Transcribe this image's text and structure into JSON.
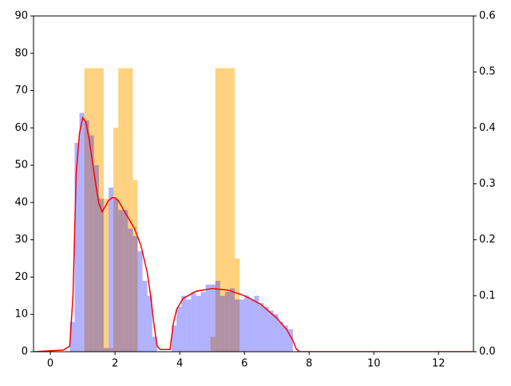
{
  "chart_data": {
    "type": "histogram",
    "bins": [
      0.6,
      0.75,
      0.9,
      1.05,
      1.2,
      1.35,
      1.5,
      1.65,
      1.8,
      1.95,
      2.1,
      2.25,
      2.4,
      2.55,
      2.7,
      2.85,
      3.0,
      3.15,
      3.3,
      3.45,
      3.6,
      3.75,
      3.9,
      4.05,
      4.2,
      4.35,
      4.5,
      4.65,
      4.8,
      4.95,
      5.1,
      5.25,
      5.4,
      5.55,
      5.7,
      5.85,
      6.0,
      6.15,
      6.3,
      6.45,
      6.6,
      6.75,
      6.9,
      7.05,
      7.2,
      7.35,
      7.5
    ],
    "series": [
      {
        "color": "#ffa500",
        "values": [
          0,
          0,
          0,
          76,
          76,
          76,
          76,
          41,
          1,
          60,
          76,
          76,
          76,
          46,
          0,
          0,
          0,
          0,
          0,
          0,
          0,
          0,
          0,
          0,
          0,
          0,
          0,
          0,
          0,
          4,
          76,
          76,
          76,
          76,
          25,
          0,
          0,
          0,
          0,
          0,
          0,
          0,
          0,
          0,
          0,
          0
        ]
      },
      {
        "color": "#0000ff",
        "values": [
          8,
          56,
          64,
          62,
          58,
          50,
          41,
          1,
          44,
          41,
          38,
          38,
          33,
          31,
          27,
          19,
          15,
          4,
          0,
          0,
          0,
          7,
          12,
          15,
          14,
          16,
          15,
          16,
          18,
          18,
          19,
          15,
          16,
          17,
          14,
          14,
          15,
          14,
          15,
          13,
          12,
          11,
          10,
          8,
          7,
          6
        ]
      }
    ],
    "line": {
      "color": "#ff0000",
      "axis": "y2",
      "x": [
        -0.5,
        0.4,
        0.6,
        0.7,
        0.8,
        0.9,
        1.0,
        1.1,
        1.2,
        1.3,
        1.4,
        1.5,
        1.6,
        1.7,
        1.8,
        1.9,
        2.0,
        2.1,
        2.2,
        2.4,
        2.6,
        2.8,
        3.0,
        3.1,
        3.2,
        3.3,
        3.4,
        3.7,
        3.8,
        3.9,
        4.1,
        4.5,
        5.0,
        5.5,
        6.0,
        6.5,
        7.0,
        7.3,
        7.5,
        7.6,
        7.7,
        13.1
      ],
      "values": [
        0,
        0.003,
        0.01,
        0.1,
        0.32,
        0.39,
        0.418,
        0.41,
        0.38,
        0.34,
        0.3,
        0.265,
        0.25,
        0.26,
        0.27,
        0.275,
        0.275,
        0.27,
        0.26,
        0.24,
        0.22,
        0.19,
        0.14,
        0.1,
        0.05,
        0.01,
        0.004,
        0.004,
        0.05,
        0.075,
        0.095,
        0.108,
        0.113,
        0.11,
        0.1,
        0.085,
        0.06,
        0.04,
        0.02,
        0.005,
        0,
        0
      ]
    },
    "xlim": [
      -0.52,
      13.08
    ],
    "xticks": [
      0,
      2,
      4,
      6,
      8,
      10,
      12
    ],
    "ylim": [
      0,
      90
    ],
    "yticks": [
      0,
      10,
      20,
      30,
      40,
      50,
      60,
      70,
      80,
      90
    ],
    "y2lim": [
      0,
      0.6
    ],
    "y2ticks": [
      {
        "value": 0,
        "label": "0.0"
      },
      0.1,
      0.2,
      0.3,
      0.4,
      0.5,
      0.6
    ]
  }
}
